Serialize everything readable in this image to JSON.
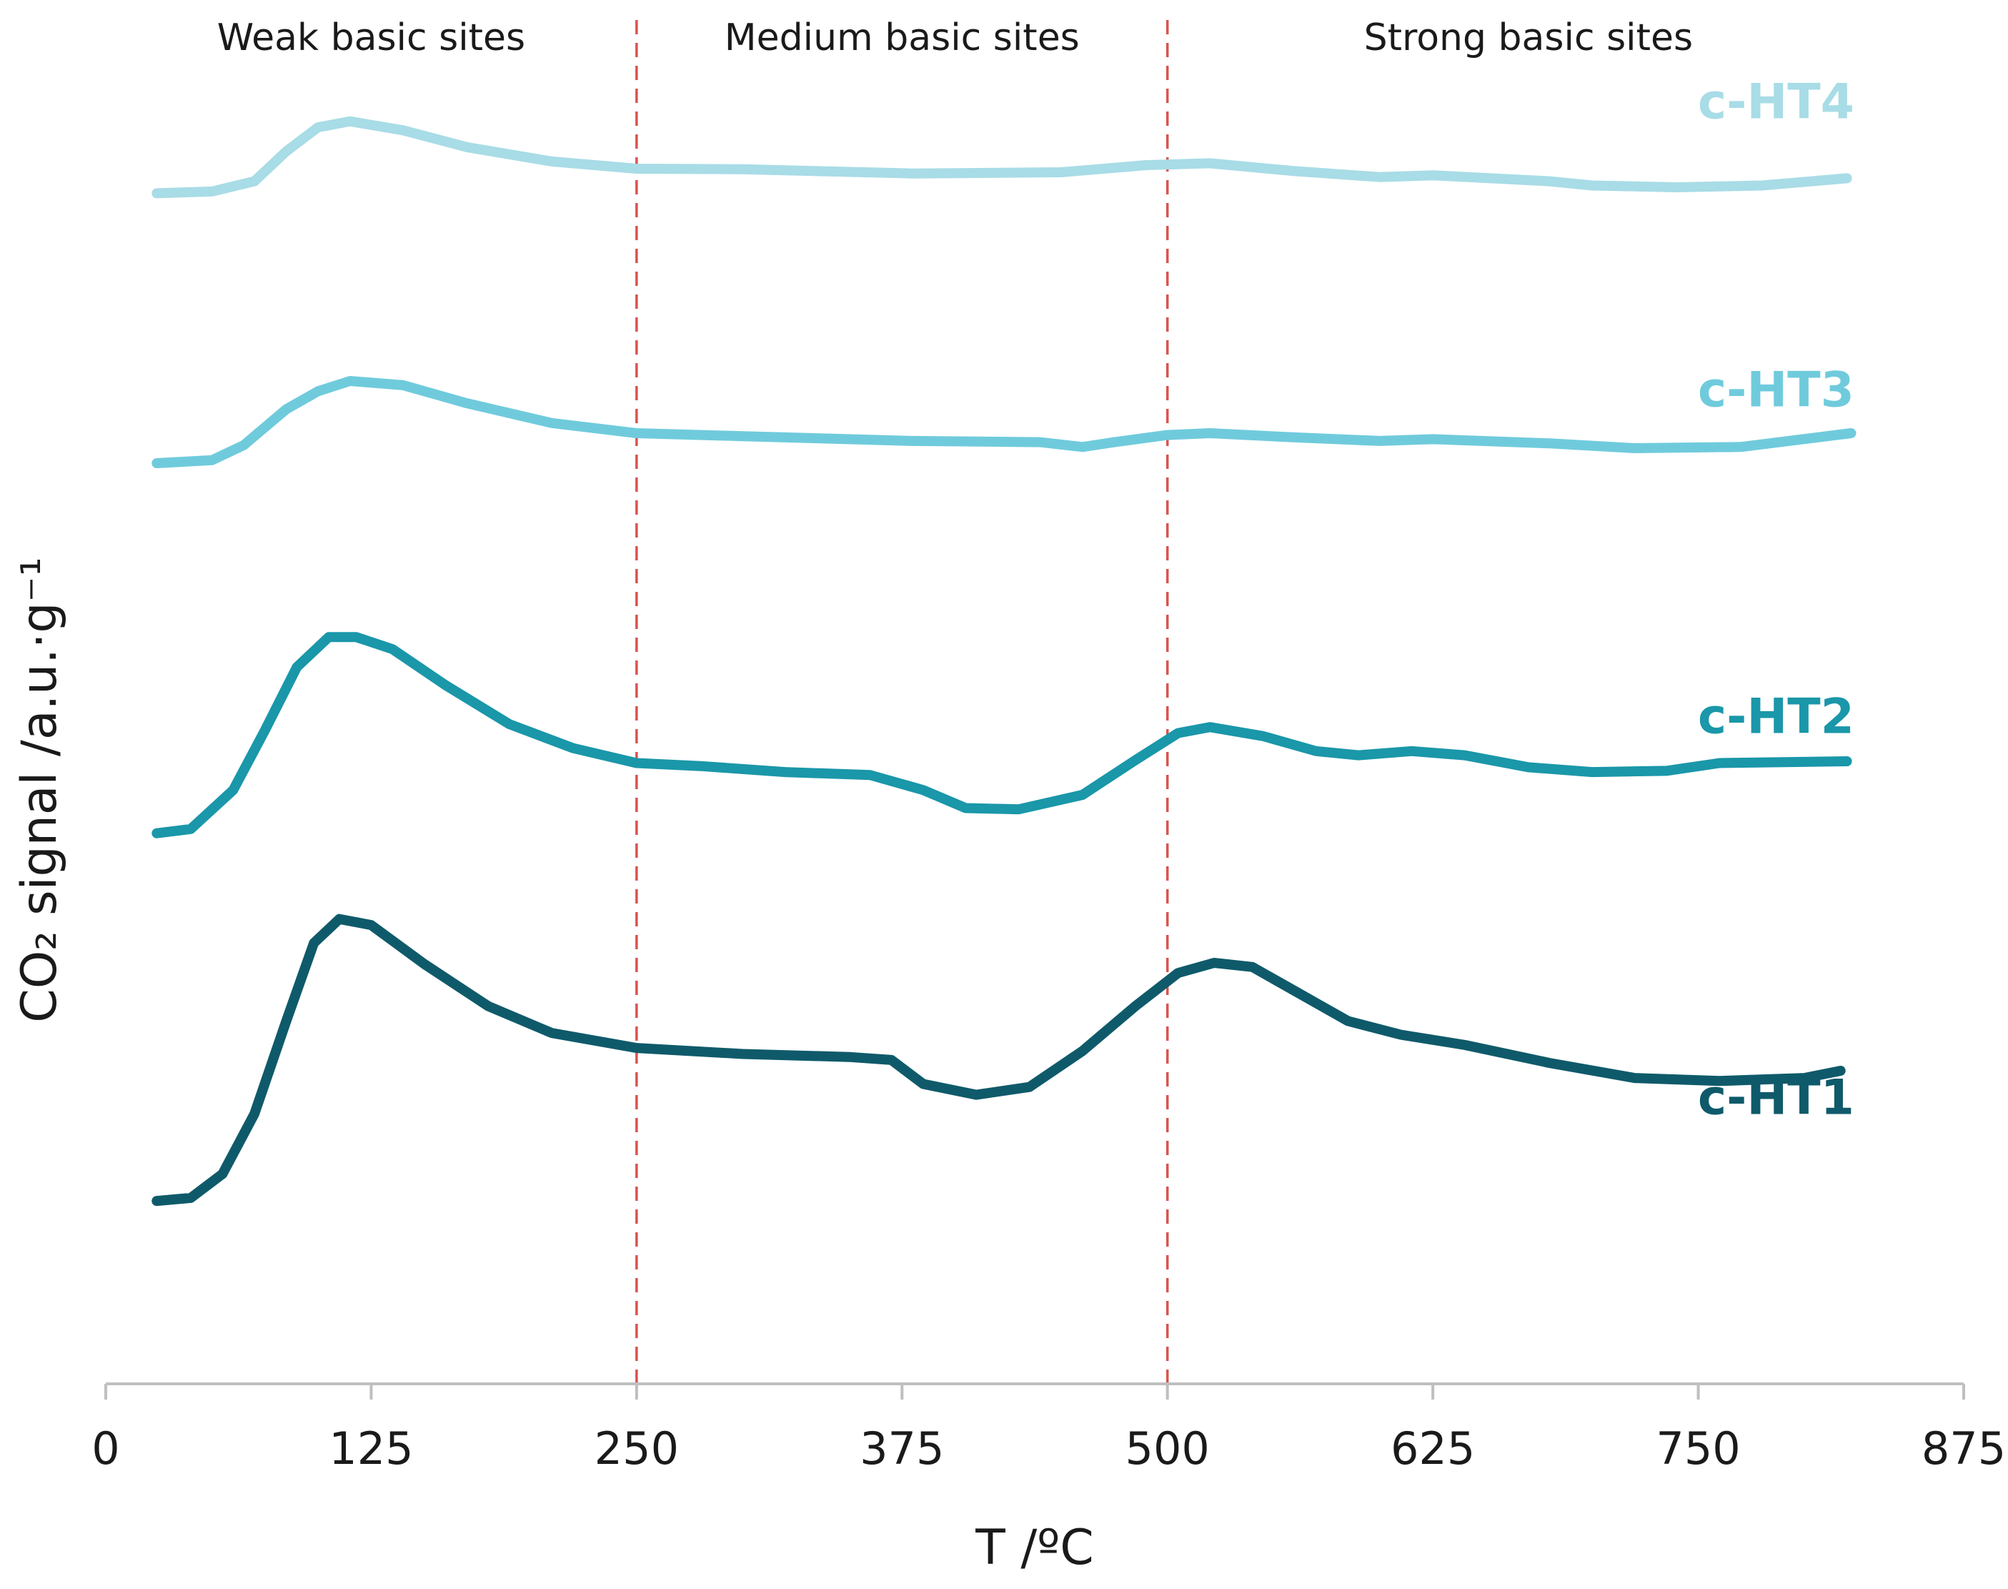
{
  "chart_data": {
    "type": "line",
    "title": "",
    "xlabel": "T /ºC",
    "ylabel": "CO₂ signal /a.u.·g⁻¹",
    "xlim": [
      0,
      875
    ],
    "ylim": [
      0,
      22
    ],
    "x_ticks": [
      "0",
      "125",
      "250",
      "375",
      "500",
      "625",
      "750",
      "875"
    ],
    "x_tick_values": [
      0,
      125,
      250,
      375,
      500,
      625,
      750,
      875
    ],
    "y_ticks_shown": false,
    "grid": false,
    "legend": "inline labels at right end of each curve",
    "region_dividers": [
      250,
      500
    ],
    "divider_color": "#d9534f",
    "regions": [
      {
        "label": "Weak basic sites",
        "x": 125
      },
      {
        "label": "Medium basic sites",
        "x": 375
      },
      {
        "label": "Strong basic sites",
        "x": 670
      }
    ],
    "series": [
      {
        "name": "c-HT4",
        "color": "#a8dce6",
        "label_at": [
          795,
          21.1
        ],
        "points": [
          [
            24,
            19.85
          ],
          [
            50,
            19.88
          ],
          [
            70,
            20.05
          ],
          [
            85,
            20.55
          ],
          [
            100,
            20.95
          ],
          [
            115,
            21.05
          ],
          [
            140,
            20.9
          ],
          [
            170,
            20.62
          ],
          [
            210,
            20.38
          ],
          [
            250,
            20.26
          ],
          [
            300,
            20.25
          ],
          [
            380,
            20.18
          ],
          [
            450,
            20.2
          ],
          [
            490,
            20.32
          ],
          [
            520,
            20.35
          ],
          [
            560,
            20.22
          ],
          [
            600,
            20.12
          ],
          [
            625,
            20.15
          ],
          [
            680,
            20.05
          ],
          [
            700,
            19.98
          ],
          [
            740,
            19.95
          ],
          [
            780,
            19.98
          ],
          [
            820,
            20.1
          ]
        ]
      },
      {
        "name": "c-HT3",
        "color": "#6fcbdc",
        "label_at": [
          795,
          16.3
        ],
        "points": [
          [
            24,
            15.35
          ],
          [
            50,
            15.4
          ],
          [
            65,
            15.65
          ],
          [
            85,
            16.25
          ],
          [
            100,
            16.55
          ],
          [
            115,
            16.72
          ],
          [
            140,
            16.65
          ],
          [
            170,
            16.35
          ],
          [
            210,
            16.02
          ],
          [
            250,
            15.85
          ],
          [
            300,
            15.8
          ],
          [
            380,
            15.72
          ],
          [
            440,
            15.7
          ],
          [
            460,
            15.62
          ],
          [
            475,
            15.7
          ],
          [
            500,
            15.82
          ],
          [
            520,
            15.85
          ],
          [
            560,
            15.78
          ],
          [
            600,
            15.72
          ],
          [
            625,
            15.75
          ],
          [
            680,
            15.68
          ],
          [
            720,
            15.6
          ],
          [
            770,
            15.62
          ],
          [
            822,
            15.85
          ]
        ]
      },
      {
        "name": "c-HT2",
        "color": "#1a97a9",
        "label_at": [
          795,
          10.85
        ],
        "points": [
          [
            24,
            9.18
          ],
          [
            40,
            9.25
          ],
          [
            60,
            9.9
          ],
          [
            75,
            10.9
          ],
          [
            90,
            11.95
          ],
          [
            105,
            12.45
          ],
          [
            118,
            12.45
          ],
          [
            135,
            12.25
          ],
          [
            160,
            11.65
          ],
          [
            190,
            11.0
          ],
          [
            220,
            10.6
          ],
          [
            250,
            10.35
          ],
          [
            280,
            10.3
          ],
          [
            320,
            10.2
          ],
          [
            360,
            10.15
          ],
          [
            385,
            9.9
          ],
          [
            405,
            9.6
          ],
          [
            430,
            9.58
          ],
          [
            460,
            9.82
          ],
          [
            485,
            10.4
          ],
          [
            505,
            10.85
          ],
          [
            520,
            10.95
          ],
          [
            545,
            10.8
          ],
          [
            570,
            10.55
          ],
          [
            590,
            10.48
          ],
          [
            615,
            10.55
          ],
          [
            640,
            10.48
          ],
          [
            670,
            10.28
          ],
          [
            700,
            10.2
          ],
          [
            735,
            10.22
          ],
          [
            760,
            10.35
          ],
          [
            820,
            10.38
          ]
        ]
      },
      {
        "name": "c-HT1",
        "color": "#0f5a6a",
        "label_at": [
          795,
          4.5
        ],
        "points": [
          [
            24,
            3.05
          ],
          [
            40,
            3.1
          ],
          [
            55,
            3.5
          ],
          [
            70,
            4.5
          ],
          [
            85,
            6.05
          ],
          [
            98,
            7.35
          ],
          [
            110,
            7.75
          ],
          [
            125,
            7.65
          ],
          [
            150,
            7.0
          ],
          [
            180,
            6.3
          ],
          [
            210,
            5.85
          ],
          [
            250,
            5.6
          ],
          [
            300,
            5.5
          ],
          [
            350,
            5.45
          ],
          [
            370,
            5.4
          ],
          [
            385,
            5.0
          ],
          [
            410,
            4.82
          ],
          [
            435,
            4.95
          ],
          [
            460,
            5.55
          ],
          [
            485,
            6.3
          ],
          [
            505,
            6.85
          ],
          [
            522,
            7.02
          ],
          [
            540,
            6.95
          ],
          [
            560,
            6.55
          ],
          [
            585,
            6.05
          ],
          [
            610,
            5.82
          ],
          [
            640,
            5.65
          ],
          [
            680,
            5.35
          ],
          [
            720,
            5.1
          ],
          [
            760,
            5.05
          ],
          [
            800,
            5.1
          ],
          [
            817,
            5.22
          ]
        ]
      }
    ]
  }
}
